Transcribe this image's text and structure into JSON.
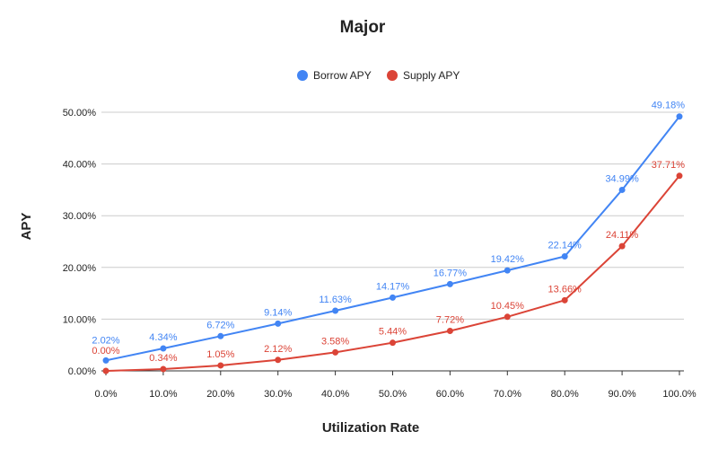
{
  "chart_data": {
    "type": "line",
    "title": "Major",
    "xlabel": "Utilization Rate",
    "ylabel": "APY",
    "categories": [
      "0.0%",
      "10.0%",
      "20.0%",
      "30.0%",
      "40.0%",
      "50.0%",
      "60.0%",
      "70.0%",
      "80.0%",
      "90.0%",
      "100.0%"
    ],
    "x": [
      0,
      10,
      20,
      30,
      40,
      50,
      60,
      70,
      80,
      90,
      100
    ],
    "ylim": [
      0,
      50
    ],
    "yticks": [
      "0.00%",
      "10.00%",
      "20.00%",
      "30.00%",
      "40.00%",
      "50.00%"
    ],
    "ytick_values": [
      0,
      10,
      20,
      30,
      40,
      50
    ],
    "grid": true,
    "legend_position": "top",
    "series": [
      {
        "name": "Borrow APY",
        "color": "#4285f4",
        "values": [
          2.02,
          4.34,
          6.72,
          9.14,
          11.63,
          14.17,
          16.77,
          19.42,
          22.14,
          34.99,
          49.18
        ],
        "labels": [
          "2.02%",
          "4.34%",
          "6.72%",
          "9.14%",
          "11.63%",
          "14.17%",
          "16.77%",
          "19.42%",
          "22.14%",
          "34.99%",
          "49.18%"
        ]
      },
      {
        "name": "Supply APY",
        "color": "#db4437",
        "values": [
          0.0,
          0.34,
          1.05,
          2.12,
          3.58,
          5.44,
          7.72,
          10.45,
          13.66,
          24.11,
          37.71
        ],
        "labels": [
          "0.00%",
          "0.34%",
          "1.05%",
          "2.12%",
          "3.58%",
          "5.44%",
          "7.72%",
          "10.45%",
          "13.66%",
          "24.11%",
          "37.71%"
        ]
      }
    ]
  }
}
